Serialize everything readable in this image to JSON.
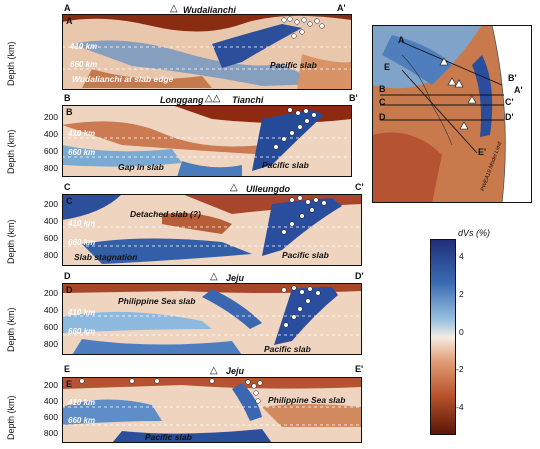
{
  "panels": [
    {
      "letter": "A",
      "start": "A",
      "end": "A'",
      "volcanoes": [
        "Wudalianchi"
      ],
      "ticks": [],
      "ref": [
        "410 km",
        "660 km"
      ],
      "annotations": [
        "Pacific slab",
        "Wudalianchi at slab edge"
      ]
    },
    {
      "letter": "B",
      "start": "B",
      "end": "B'",
      "volcanoes": [
        "Longgang",
        "Tianchi"
      ],
      "ticks": [
        "200",
        "400",
        "600",
        "800"
      ],
      "ref": [
        "410 km",
        "660 km"
      ],
      "annotations": [
        "Gap in slab",
        "Pacific slab"
      ]
    },
    {
      "letter": "C",
      "start": "C",
      "end": "C'",
      "volcanoes": [
        "Ulleungdo"
      ],
      "ticks": [
        "200",
        "400",
        "600",
        "800"
      ],
      "ref": [
        "410 km",
        "660 km"
      ],
      "annotations": [
        "Detached slab (?)",
        "Pacific slab",
        "Slab stagnation"
      ]
    },
    {
      "letter": "D",
      "start": "D",
      "end": "D'",
      "volcanoes": [
        "Jeju"
      ],
      "ticks": [
        "200",
        "400",
        "600",
        "800"
      ],
      "ref": [
        "410 km",
        "660 km"
      ],
      "annotations": [
        "Philippine Sea slab",
        "Pacific slab"
      ]
    },
    {
      "letter": "E",
      "start": "E",
      "end": "E'",
      "volcanoes": [
        "Jeju"
      ],
      "ticks": [
        "200",
        "400",
        "600",
        "800"
      ],
      "ref": [
        "410 km",
        "660 km"
      ],
      "annotations": [
        "Philippine Sea slab",
        "Pacific slab"
      ]
    }
  ],
  "axis_label": "Depth (km)",
  "map": {
    "labels": [
      "A",
      "A'",
      "B",
      "B'",
      "C",
      "C'",
      "D",
      "D'",
      "E",
      "E'"
    ],
    "model_limit": "PWEA19 Model Limit"
  },
  "colorbar": {
    "title": "dVs (%)",
    "ticks": [
      "4",
      "2",
      "0",
      "-2",
      "-4"
    ],
    "min": -5,
    "max": 5,
    "colors": [
      "#6b1e0a",
      "#c0582a",
      "#f2ddc8",
      "#7fb2d8",
      "#1f3b8c"
    ]
  }
}
